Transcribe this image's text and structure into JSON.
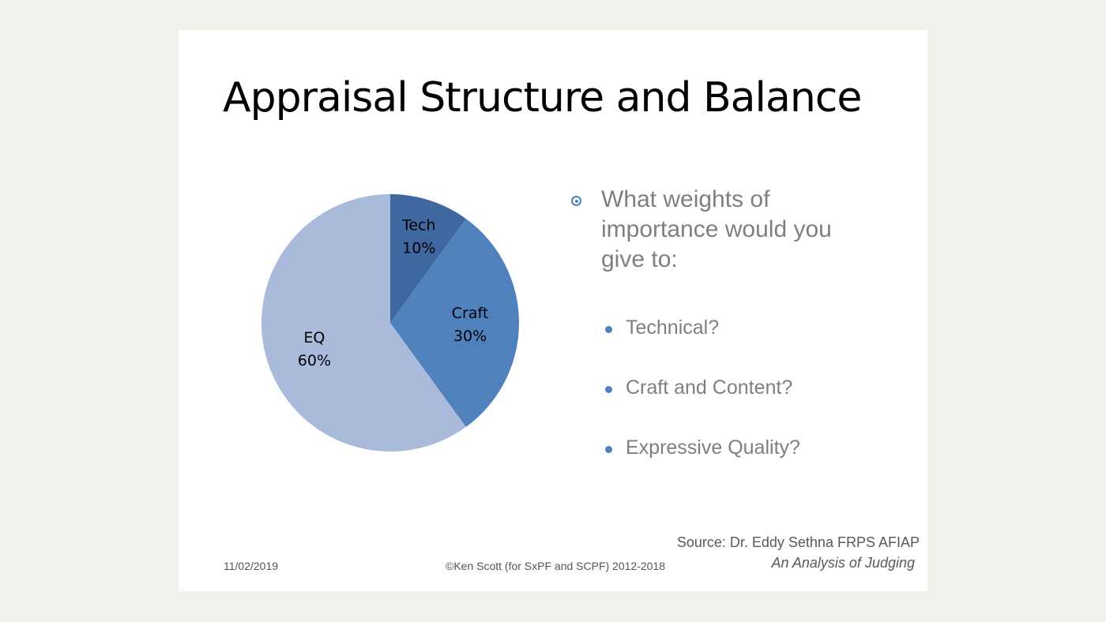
{
  "slide": {
    "title": "Appraisal Structure and Balance",
    "bullet": "What weights of importance would you give to:",
    "sub_bullets": [
      "Technical?",
      "Craft and Content?",
      "Expressive Quality?"
    ],
    "date": "11/02/2019",
    "copyright": "©Ken Scott (for SxPF and SCPF) 2012-2018",
    "source": "Source: Dr. Eddy Sethna FRPS AFIAP",
    "source_title": "An Analysis of Judging"
  },
  "chart_data": {
    "type": "pie",
    "categories": [
      "Tech",
      "Craft",
      "EQ"
    ],
    "values": [
      10,
      30,
      60
    ],
    "value_labels": [
      "10%",
      "30%",
      "60%"
    ],
    "colors": [
      "#3f67a0",
      "#4f81bd",
      "#a9badb"
    ]
  }
}
